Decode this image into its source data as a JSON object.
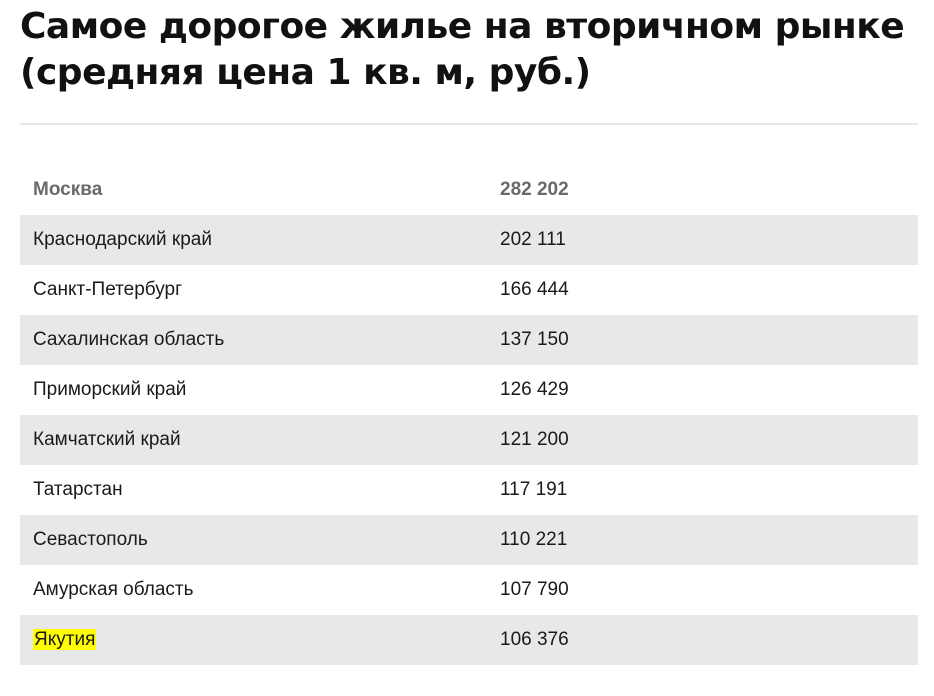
{
  "title": {
    "line1": "Самое дорогое жилье на вторичном рынке",
    "line2": "(средняя цена 1 кв. м, руб.)"
  },
  "table": {
    "header": {
      "region": "Москва",
      "price": "282 202"
    },
    "rows": [
      {
        "region": "Краснодарский край",
        "price": "202 111"
      },
      {
        "region": "Санкт-Петербург",
        "price": "166 444"
      },
      {
        "region": "Сахалинская область",
        "price": "137 150"
      },
      {
        "region": "Приморский край",
        "price": "126 429"
      },
      {
        "region": "Камчатский край",
        "price": "121 200"
      },
      {
        "region": "Татарстан",
        "price": "117 191"
      },
      {
        "region": "Севастополь",
        "price": "110 221"
      },
      {
        "region": "Амурская область",
        "price": "107 790"
      },
      {
        "region": "Якутия",
        "price": "106 376"
      }
    ],
    "highlight_color": "#ffff00",
    "stripe_color": "#e8e8e8"
  }
}
